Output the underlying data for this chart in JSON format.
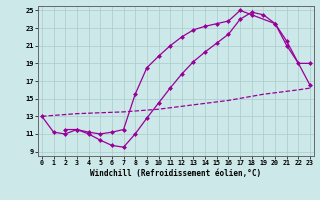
{
  "xlabel": "Windchill (Refroidissement éolien,°C)",
  "bg_color": "#cce8e8",
  "grid_color": "#aacccc",
  "line_color": "#990099",
  "xlim_min": -0.3,
  "xlim_max": 23.3,
  "ylim_min": 8.5,
  "ylim_max": 25.5,
  "yticks": [
    9,
    11,
    13,
    15,
    17,
    19,
    21,
    23,
    25
  ],
  "xticks": [
    0,
    1,
    2,
    3,
    4,
    5,
    6,
    7,
    8,
    9,
    10,
    11,
    12,
    13,
    14,
    15,
    16,
    17,
    18,
    19,
    20,
    21,
    22,
    23
  ],
  "s1_x": [
    0,
    1,
    2,
    3,
    4,
    5,
    6,
    7,
    8,
    9,
    10,
    11,
    12,
    13,
    14,
    15,
    16,
    17,
    18,
    19,
    20,
    21,
    22,
    23
  ],
  "s1_y": [
    13.0,
    11.2,
    11.0,
    11.5,
    11.0,
    10.3,
    9.7,
    9.5,
    11.0,
    12.8,
    14.5,
    16.2,
    17.8,
    19.2,
    20.3,
    21.3,
    22.3,
    24.0,
    24.8,
    24.5,
    23.5,
    21.0,
    19.0,
    19.0
  ],
  "s2_x": [
    2,
    3,
    4,
    5,
    6,
    7,
    8,
    9,
    10,
    11,
    12,
    13,
    14,
    15,
    16,
    17,
    18,
    20,
    21,
    23
  ],
  "s2_y": [
    11.5,
    11.5,
    11.2,
    11.0,
    11.2,
    11.5,
    15.5,
    18.5,
    19.8,
    21.0,
    22.0,
    22.8,
    23.2,
    23.5,
    23.8,
    25.0,
    24.5,
    23.5,
    21.5,
    16.5
  ],
  "s3_x": [
    0,
    3,
    7,
    10,
    13,
    16,
    19,
    22,
    23
  ],
  "s3_y": [
    13.0,
    13.3,
    13.5,
    13.8,
    14.3,
    14.8,
    15.5,
    16.0,
    16.2
  ]
}
